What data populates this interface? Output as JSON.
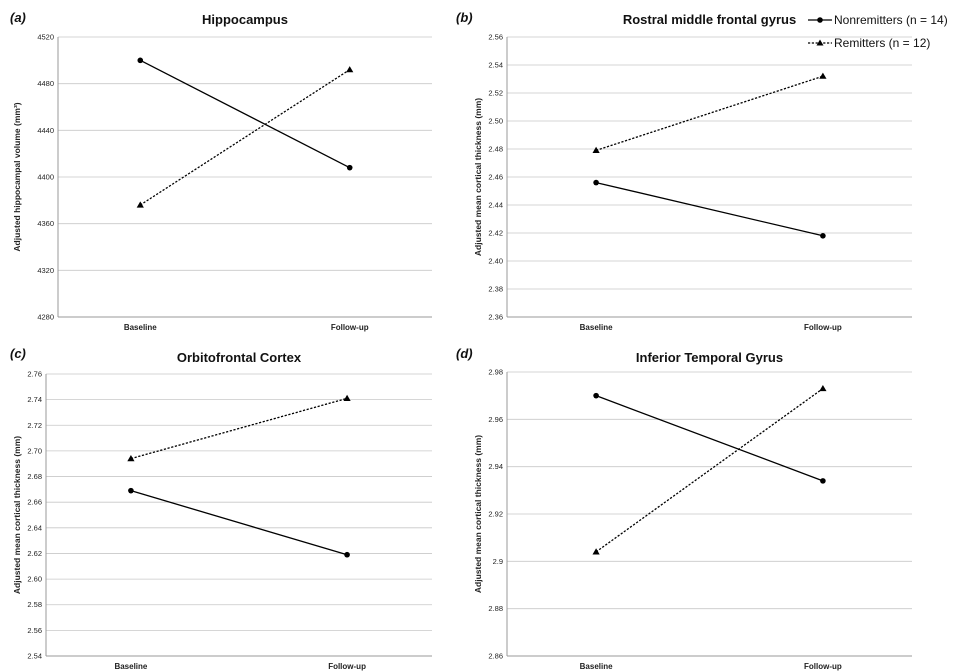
{
  "legend": {
    "placement": "top-right",
    "entries": [
      {
        "name": "Nonremitters (n = 14)",
        "marker": "circle",
        "line": "solid"
      },
      {
        "name": "Remitters (n = 12)",
        "marker": "triangle",
        "line": "dotted"
      }
    ]
  },
  "chart_data": [
    {
      "type": "line",
      "letter": "(a)",
      "title": "Hippocampus",
      "ylabel": "Adjusted hippocampal volume (mm³)",
      "categories": [
        "Baseline",
        "Follow-up"
      ],
      "ylim": [
        4280,
        4520
      ],
      "yticks": [
        4280,
        4320,
        4360,
        4400,
        4440,
        4480,
        4520
      ],
      "ytick_labels": [
        "4280",
        "4320",
        "4360",
        "4400",
        "4440",
        "4480",
        "4520"
      ],
      "grid": true,
      "series": [
        {
          "name": "Nonremitters (n = 14)",
          "values": [
            4500,
            4408
          ]
        },
        {
          "name": "Remitters (n = 12)",
          "values": [
            4376,
            4492
          ]
        }
      ]
    },
    {
      "type": "line",
      "letter": "(b)",
      "title": "Rostral middle frontal gyrus",
      "ylabel": "Adjusted mean cortical thickness (mm)",
      "categories": [
        "Baseline",
        "Follow-up"
      ],
      "ylim": [
        2.36,
        2.56
      ],
      "yticks": [
        2.36,
        2.38,
        2.4,
        2.42,
        2.44,
        2.46,
        2.48,
        2.5,
        2.52,
        2.54,
        2.56
      ],
      "ytick_labels": [
        "2.36",
        "2.38",
        "2.40",
        "2.42",
        "2.44",
        "2.46",
        "2.48",
        "2.50",
        "2.52",
        "2.54",
        "2.56"
      ],
      "grid": true,
      "series": [
        {
          "name": "Nonremitters (n = 14)",
          "values": [
            2.456,
            2.418
          ]
        },
        {
          "name": "Remitters (n = 12)",
          "values": [
            2.479,
            2.532
          ]
        }
      ]
    },
    {
      "type": "line",
      "letter": "(c)",
      "title": "Orbitofrontal Cortex",
      "ylabel": "Adjusted mean cortical thickness (mm)",
      "categories": [
        "Baseline",
        "Follow-up"
      ],
      "ylim": [
        2.54,
        2.76
      ],
      "yticks": [
        2.54,
        2.56,
        2.58,
        2.6,
        2.62,
        2.64,
        2.66,
        2.68,
        2.7,
        2.72,
        2.74,
        2.76
      ],
      "ytick_labels": [
        "2.54",
        "2.56",
        "2.58",
        "2.60",
        "2.62",
        "2.64",
        "2.66",
        "2.68",
        "2.70",
        "2.72",
        "2.74",
        "2.76"
      ],
      "grid": true,
      "series": [
        {
          "name": "Nonremitters (n = 14)",
          "values": [
            2.669,
            2.619
          ]
        },
        {
          "name": "Remitters (n = 12)",
          "values": [
            2.694,
            2.741
          ]
        }
      ]
    },
    {
      "type": "line",
      "letter": "(d)",
      "title": "Inferior Temporal Gyrus",
      "ylabel": "Adjusted mean cortical thickness (mm)",
      "categories": [
        "Baseline",
        "Follow-up"
      ],
      "ylim": [
        2.86,
        2.98
      ],
      "yticks": [
        2.86,
        2.88,
        2.9,
        2.92,
        2.94,
        2.96,
        2.98
      ],
      "ytick_labels": [
        "2.86",
        "2.88",
        "2.9",
        "2.92",
        "2.94",
        "2.96",
        "2.98"
      ],
      "grid": true,
      "series": [
        {
          "name": "Nonremitters (n = 14)",
          "values": [
            2.97,
            2.934
          ]
        },
        {
          "name": "Remitters (n = 12)",
          "values": [
            2.904,
            2.973
          ]
        }
      ]
    }
  ]
}
